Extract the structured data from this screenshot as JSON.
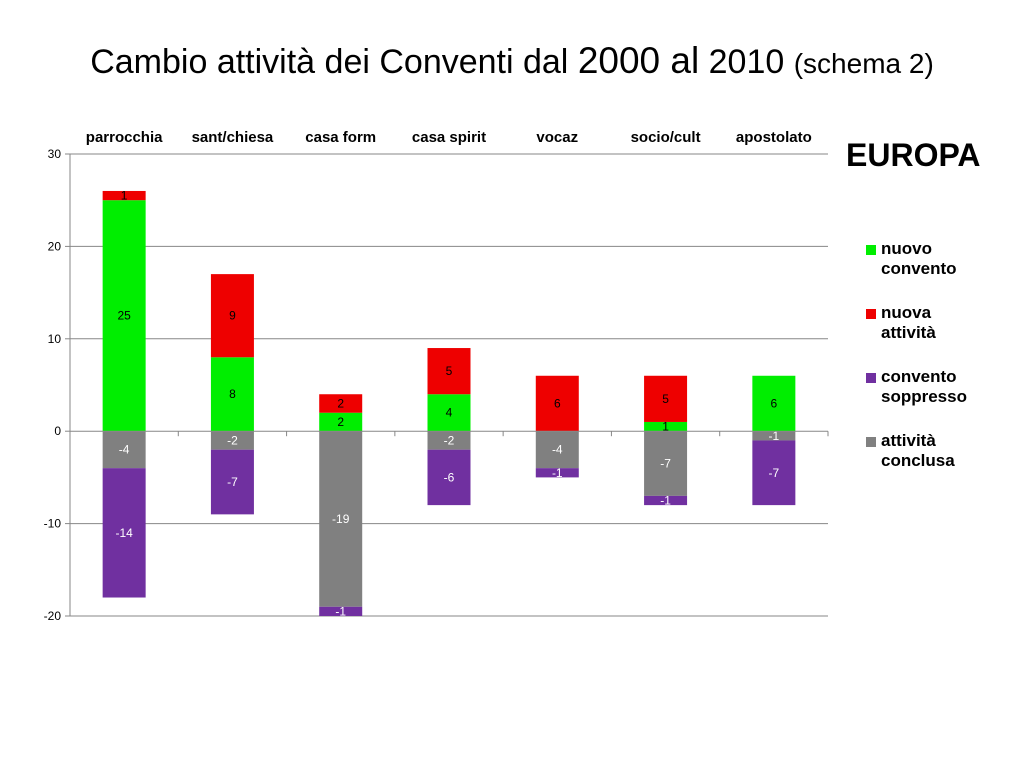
{
  "title": {
    "part1": "Cambio attività dei Conventi dal ",
    "part2": "2000 al",
    "part3": " 2010 ",
    "part4": "(schema 2)"
  },
  "chart_data": {
    "type": "bar",
    "stacked": true,
    "region_label": "EUROPA",
    "categories": [
      "parrocchia",
      "sant/chiesa",
      "casa form",
      "casa spirit",
      "vocaz",
      "socio/cult",
      "apostolato"
    ],
    "ylim": [
      -20,
      30
    ],
    "yticks": [
      -20,
      -10,
      0,
      10,
      20,
      30
    ],
    "grid": true,
    "category_labels_position": "top",
    "legend_position": "right",
    "series": [
      {
        "name": "nuovo convento",
        "color": "#00ee00",
        "values": [
          25,
          8,
          2,
          4,
          0,
          1,
          6
        ],
        "sign": "positive"
      },
      {
        "name": "nuova attività",
        "color": "#ee0000",
        "values": [
          1,
          9,
          2,
          5,
          6,
          5,
          0
        ],
        "sign": "positive"
      },
      {
        "name": "convento soppresso",
        "color": "#7030a0",
        "values": [
          -14,
          -7,
          -1,
          -6,
          -1,
          -1,
          -7
        ],
        "sign": "negative"
      },
      {
        "name": "attività conclusa",
        "color": "#808080",
        "values": [
          -4,
          -2,
          -19,
          -2,
          -4,
          -7,
          -1
        ],
        "sign": "negative"
      }
    ],
    "legend_lines": [
      [
        "nuovo",
        "convento"
      ],
      [
        "nuova",
        "attività"
      ],
      [
        "convento",
        "soppresso"
      ],
      [
        "attività",
        "conclusa"
      ]
    ]
  }
}
